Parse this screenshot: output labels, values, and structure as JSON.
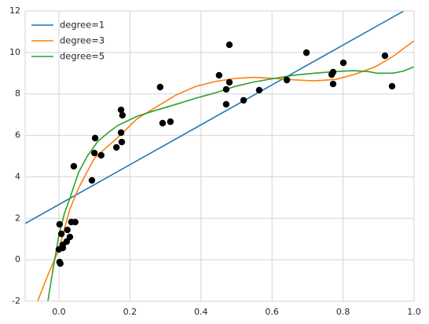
{
  "chart_data": {
    "type": "line",
    "xlim": [
      -0.095,
      1.0
    ],
    "ylim": [
      -2,
      12
    ],
    "xticks": [
      {
        "value": 0,
        "label": "0.0"
      },
      0.2,
      0.4,
      0.6,
      0.8,
      {
        "value": 1,
        "label": "1.0"
      }
    ],
    "yticks": [
      -2,
      0,
      2,
      4,
      6,
      8,
      10,
      12
    ],
    "grid": true,
    "legend": "upper left",
    "series": [
      {
        "name": "degree=1",
        "type": "line",
        "color": "#1f77b4",
        "x": [
          -0.095,
          0.971
        ],
        "values": [
          1.75,
          12
        ]
      },
      {
        "name": "degree=3",
        "type": "line",
        "color": "#ff7f0e",
        "x": [
          -0.06,
          -0.03,
          0,
          0.03,
          0.055,
          0.1,
          0.166,
          0.22,
          0.277,
          0.33,
          0.387,
          0.44,
          0.498,
          0.55,
          0.608,
          0.66,
          0.719,
          0.78,
          0.83,
          0.89,
          0.94,
          1.0
        ],
        "values": [
          -2,
          -0.7,
          0.5,
          2.4,
          3.45,
          4.9,
          5.9,
          6.8,
          7.4,
          7.95,
          8.37,
          8.6,
          8.75,
          8.8,
          8.75,
          8.68,
          8.63,
          8.7,
          8.93,
          9.3,
          9.8,
          10.56
        ]
      },
      {
        "name": "degree=5",
        "type": "line",
        "color": "#2ca02c",
        "x": [
          -0.031,
          -0.015,
          0,
          0.015,
          0.033,
          0.055,
          0.08,
          0.11,
          0.14,
          0.166,
          0.221,
          0.277,
          0.33,
          0.387,
          0.44,
          0.498,
          0.55,
          0.608,
          0.66,
          0.719,
          0.78,
          0.83,
          0.87,
          0.896,
          0.94,
          0.97,
          1.0
        ],
        "values": [
          -2,
          -0.3,
          1.18,
          2.2,
          3.07,
          4.2,
          5.0,
          5.72,
          6.15,
          6.48,
          6.93,
          7.23,
          7.5,
          7.8,
          8.05,
          8.37,
          8.58,
          8.75,
          8.9,
          9.0,
          9.08,
          9.12,
          9.08,
          9.0,
          9.0,
          9.1,
          9.31
        ]
      },
      {
        "type": "scatter",
        "color": "#000000",
        "x": [
          0.002,
          0,
          0.004,
          0.002,
          0.007,
          0.011,
          0.011,
          0.022,
          0.024,
          0.031,
          0.035,
          0.046,
          0.042,
          0.093,
          0.102,
          0.1,
          0.119,
          0.162,
          0.175,
          0.177,
          0.175,
          0.179,
          0.285,
          0.292,
          0.314,
          0.451,
          0.471,
          0.471,
          0.48,
          0.48,
          0.52,
          0.564,
          0.642,
          0.697,
          0.768,
          0.772,
          0.772,
          0.801,
          0.918,
          0.938
        ],
        "values": [
          1.71,
          0.5,
          -0.18,
          -0.11,
          1.25,
          0.57,
          0.72,
          0.88,
          1.44,
          1.1,
          1.82,
          1.82,
          4.51,
          3.83,
          5.87,
          5.15,
          5.04,
          5.42,
          6.13,
          5.68,
          7.23,
          6.97,
          8.33,
          6.59,
          6.66,
          8.9,
          8.22,
          7.5,
          8.56,
          10.37,
          7.69,
          8.18,
          8.67,
          9.99,
          8.93,
          9.05,
          8.48,
          9.5,
          9.84,
          8.37
        ]
      }
    ]
  }
}
